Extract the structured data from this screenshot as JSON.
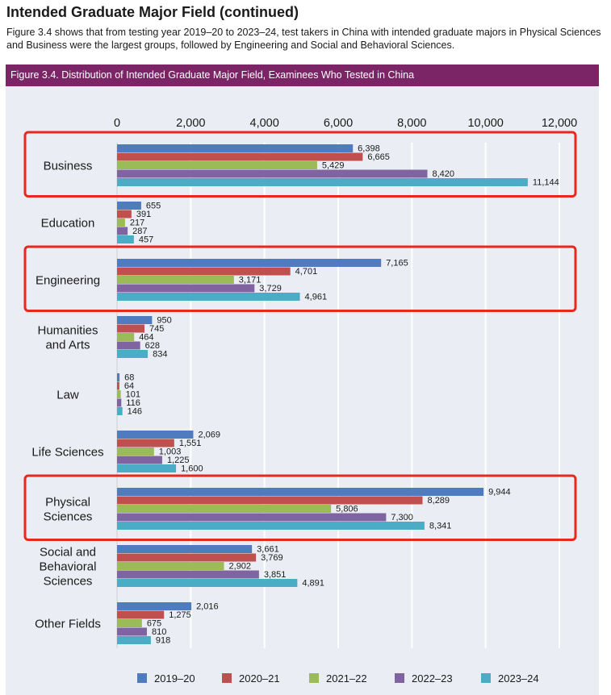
{
  "header": {
    "section_title": "Intended Graduate Major Field (continued)",
    "intro": "Figure 3.4 shows that from testing year 2019–20 to 2023–24, test takers in China with intended graduate majors in Physical Sciences and Business were the largest groups, followed by Engineering and Social and Behavioral Sciences.",
    "figure_title": "Figure 3.4. Distribution of Intended Graduate Major Field, Examinees Who Tested in China"
  },
  "chart_data": {
    "type": "bar",
    "orientation": "horizontal",
    "xlim": [
      0,
      12000
    ],
    "xticks": [
      "0",
      "2,000",
      "4,000",
      "6,000",
      "8,000",
      "10,000",
      "12,000"
    ],
    "grid": true,
    "legend_position": "bottom",
    "categories": [
      [
        "Business"
      ],
      [
        "Education"
      ],
      [
        "Engineering"
      ],
      [
        "Humanities",
        "and Arts"
      ],
      [
        "Law"
      ],
      [
        "Life Sciences"
      ],
      [
        "Physical",
        "Sciences"
      ],
      [
        "Social and",
        "Behavioral",
        "Sciences"
      ],
      [
        "Other Fields"
      ]
    ],
    "series": [
      {
        "name": "2019–20",
        "color": "#4f7bbf",
        "values": [
          6398,
          655,
          7165,
          950,
          68,
          2069,
          9944,
          3661,
          2016
        ],
        "labels": [
          "6,398",
          "655",
          "7,165",
          "950",
          "68",
          "2,069",
          "9,944",
          "3,661",
          "2,016"
        ]
      },
      {
        "name": "2020–21",
        "color": "#c0504d",
        "values": [
          6665,
          391,
          4701,
          745,
          64,
          1551,
          8289,
          3769,
          1275
        ],
        "labels": [
          "6,665",
          "391",
          "4,701",
          "745",
          "64",
          "1,551",
          "8,289",
          "3,769",
          "1,275"
        ]
      },
      {
        "name": "2021–22",
        "color": "#9bbb59",
        "values": [
          5429,
          217,
          3171,
          464,
          101,
          1003,
          5806,
          2902,
          675
        ],
        "labels": [
          "5,429",
          "217",
          "3,171",
          "464",
          "101",
          "1,003",
          "5,806",
          "2,902",
          "675"
        ]
      },
      {
        "name": "2022–23",
        "color": "#8064a2",
        "values": [
          8420,
          287,
          3729,
          628,
          116,
          1225,
          7300,
          3851,
          810
        ],
        "labels": [
          "8,420",
          "287",
          "3,729",
          "628",
          "116",
          "1,225",
          "7,300",
          "3,851",
          "810"
        ]
      },
      {
        "name": "2023–24",
        "color": "#4bacc6",
        "values": [
          11144,
          457,
          4961,
          834,
          146,
          1600,
          8341,
          4891,
          918
        ],
        "labels": [
          "11,144",
          "457",
          "4,961",
          "834",
          "146",
          "1,600",
          "8,341",
          "4,891",
          "918"
        ]
      }
    ],
    "highlighted_categories": [
      "Business",
      "Engineering",
      "Physical Sciences"
    ],
    "highlight_color": "#e8281e"
  }
}
